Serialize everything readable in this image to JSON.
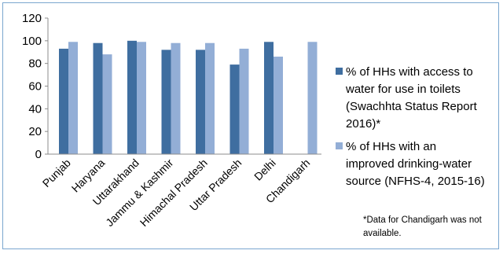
{
  "chart_data": {
    "type": "bar",
    "categories": [
      "Punjab",
      "Haryana",
      "Uttarakhand",
      "Jammu & Kashmir",
      "Himachal Pradesh",
      "Uttar Pradesh",
      "Delhi",
      "Chandigarh"
    ],
    "series": [
      {
        "name": "% of HHs with access to water for use in toilets (Swachhta Status Report 2016)*",
        "name_lines": [
          "% of HHs with access to",
          "water for use in toilets",
          "(Swachhta Status Report",
          "2016)*"
        ],
        "color": "#3f6ea0",
        "values": [
          93,
          98,
          100,
          92,
          92,
          79,
          99,
          null
        ]
      },
      {
        "name": "% of HHs with an improved drinking-water source (NFHS-4, 2015-16)",
        "name_lines": [
          "% of HHs with an",
          "improved drinking-water",
          "source (NFHS-4, 2015-16)"
        ],
        "color": "#93aed6",
        "values": [
          99,
          88,
          99,
          98,
          98,
          93,
          86,
          99
        ]
      }
    ],
    "yticks": [
      "0",
      "20",
      "40",
      "60",
      "80",
      "100",
      "120"
    ],
    "ylim": [
      0,
      120
    ],
    "grid": false,
    "legend_position": "right",
    "footnote": "*Data for Chandigarh was not available."
  }
}
